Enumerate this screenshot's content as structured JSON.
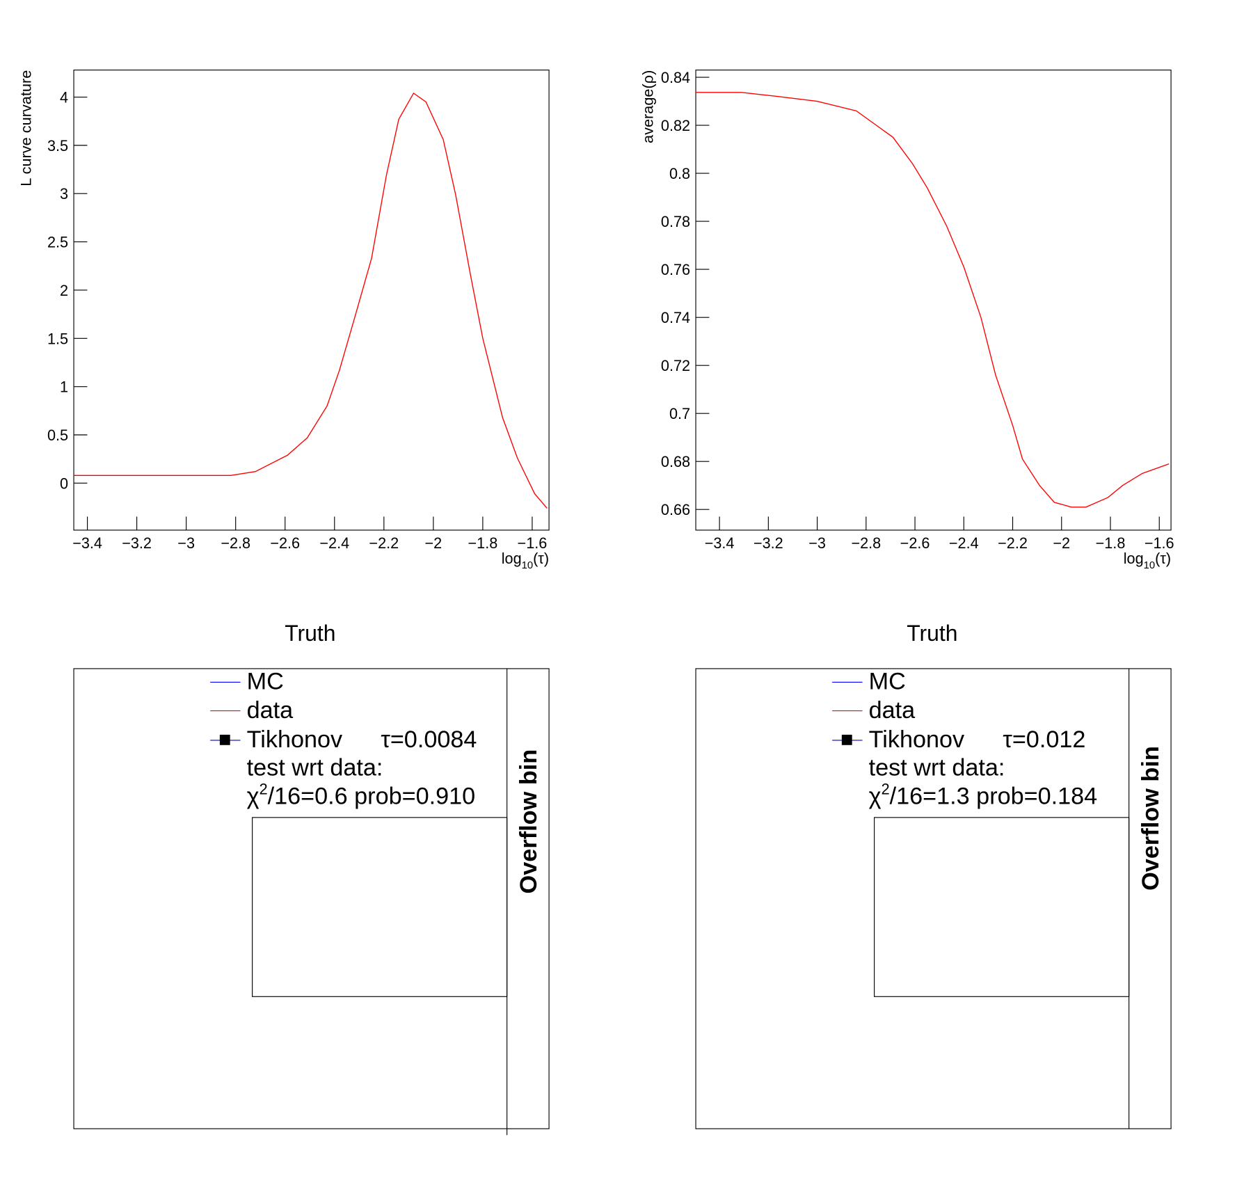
{
  "chart_data": [
    {
      "type": "line",
      "y_label": "L curve curvature",
      "x_label": [
        "log",
        "10",
        "(τ)"
      ],
      "xlim": [
        -3.455,
        -1.532
      ],
      "ylim": [
        -0.487,
        4.28
      ],
      "xticks": [
        {
          "value": -3.4,
          "label": "−3.4"
        },
        {
          "value": -3.2,
          "label": "−3.2"
        },
        {
          "value": -3,
          "label": "−3"
        },
        {
          "value": -2.8,
          "label": "−2.8"
        },
        {
          "value": -2.6,
          "label": "−2.6"
        },
        {
          "value": -2.4,
          "label": "−2.4"
        },
        {
          "value": -2.2,
          "label": "−2.2"
        },
        {
          "value": -2,
          "label": "−2"
        },
        {
          "value": -1.8,
          "label": "−1.8"
        },
        {
          "value": -1.6,
          "label": "−1.6"
        }
      ],
      "yticks": [
        0,
        0.5,
        1,
        1.5,
        2,
        2.5,
        3,
        3.5,
        4
      ],
      "x": [
        -3.455,
        -3.335,
        -2.82,
        -2.72,
        -2.59,
        -2.51,
        -2.43,
        -2.38,
        -2.32,
        -2.25,
        -2.19,
        -2.14,
        -2.08,
        -2.03,
        -1.96,
        -1.91,
        -1.85,
        -1.8,
        -1.72,
        -1.66,
        -1.59,
        -1.54
      ],
      "series": [
        {
          "color": "#ff0000",
          "values": [
            0.08,
            0.08,
            0.08,
            0.12,
            0.29,
            0.47,
            0.8,
            1.17,
            1.7,
            2.33,
            3.19,
            3.77,
            4.04,
            3.95,
            3.56,
            2.99,
            2.16,
            1.5,
            0.68,
            0.26,
            -0.11,
            -0.26
          ]
        }
      ]
    },
    {
      "type": "line",
      "y_label": "average(ρ)",
      "x_label": [
        "log",
        "10",
        "(τ)"
      ],
      "xlim": [
        -3.497,
        -1.552
      ],
      "ylim": [
        0.6514,
        0.843
      ],
      "xticks": [
        {
          "value": -3.4,
          "label": "−3.4"
        },
        {
          "value": -3.2,
          "label": "−3.2"
        },
        {
          "value": -3,
          "label": "−3"
        },
        {
          "value": -2.8,
          "label": "−2.8"
        },
        {
          "value": -2.6,
          "label": "−2.6"
        },
        {
          "value": -2.4,
          "label": "−2.4"
        },
        {
          "value": -2.2,
          "label": "−2.2"
        },
        {
          "value": -2,
          "label": "−2"
        },
        {
          "value": -1.8,
          "label": "−1.8"
        },
        {
          "value": -1.6,
          "label": "−1.6"
        }
      ],
      "yticks": [
        0.66,
        0.68,
        0.7,
        0.72,
        0.74,
        0.76,
        0.78,
        0.8,
        0.82,
        0.84
      ],
      "x": [
        -3.497,
        -3.31,
        -3.16,
        -3,
        -2.84,
        -2.69,
        -2.61,
        -2.55,
        -2.47,
        -2.4,
        -2.33,
        -2.27,
        -2.2,
        -2.16,
        -2.09,
        -2.03,
        -1.96,
        -1.9,
        -1.81,
        -1.75,
        -1.67,
        -1.56
      ],
      "series": [
        {
          "color": "#ff0000",
          "values": [
            0.8337,
            0.8337,
            0.832,
            0.83,
            0.826,
            0.815,
            0.804,
            0.794,
            0.778,
            0.761,
            0.74,
            0.716,
            0.695,
            0.681,
            0.67,
            0.663,
            0.661,
            0.661,
            0.665,
            0.67,
            0.675,
            0.679
          ]
        }
      ]
    }
  ],
  "panels": [
    {
      "title": "Truth",
      "legend": [
        {
          "name": "MC",
          "color": "#0000ff"
        },
        {
          "name": "data",
          "color": "#ff0000"
        },
        {
          "name": "Tikhonov",
          "color": "#000000"
        }
      ],
      "tau": "τ=0.0084",
      "note": "test wrt data:",
      "chi": [
        "χ",
        "2",
        "/16=0.6 prob=0.910"
      ],
      "side_label": "Overflow bin"
    },
    {
      "title": "Truth",
      "legend": [
        {
          "name": "MC",
          "color": "#0000ff"
        },
        {
          "name": "data",
          "color": "#ff0000"
        },
        {
          "name": "Tikhonov",
          "color": "#000000"
        }
      ],
      "tau": "τ=0.012",
      "note": "test wrt data:",
      "chi": [
        "χ",
        "2",
        "/16=1.3 prob=0.184"
      ],
      "side_label": "Overflow bin"
    }
  ]
}
